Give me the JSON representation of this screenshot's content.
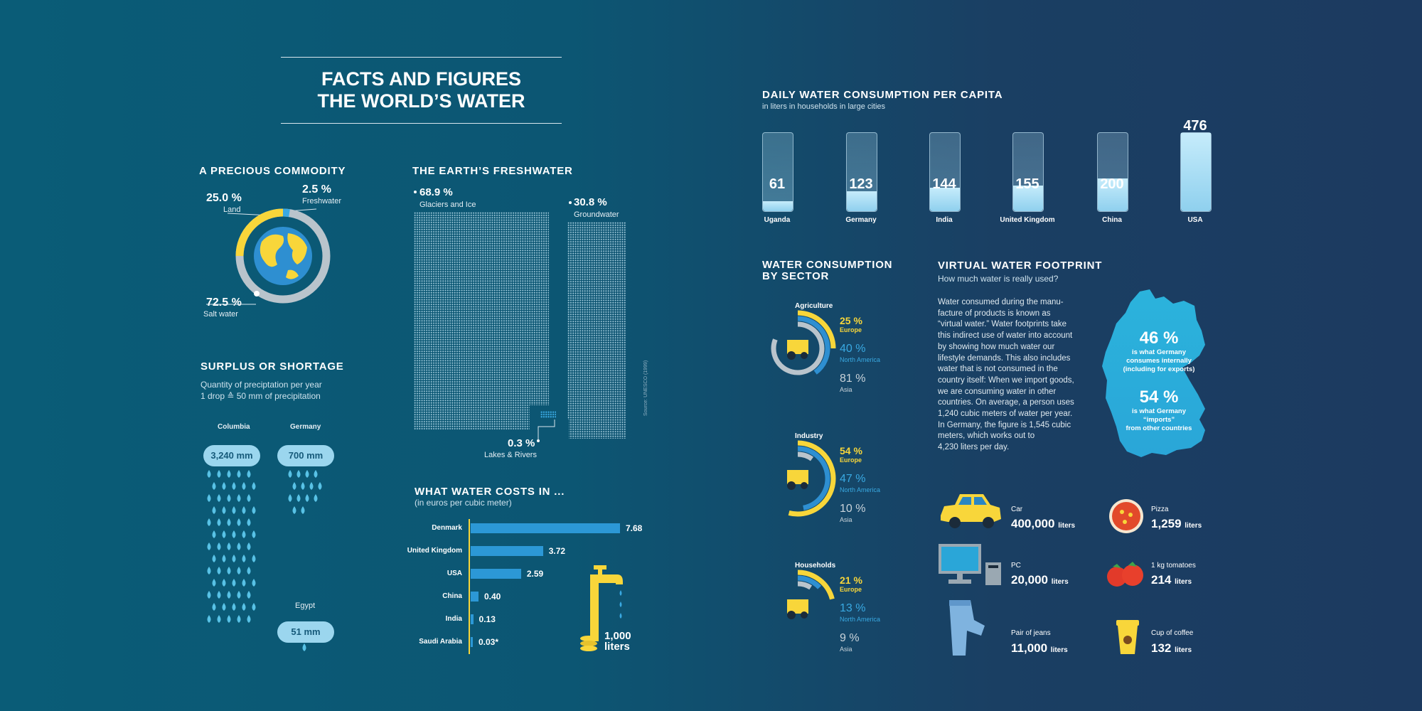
{
  "title": {
    "line1": "FACTS AND FIGURES",
    "line2": "THE WORLD’S WATER"
  },
  "commodity": {
    "heading": "A PRECIOUS COMMODITY",
    "land_pct": "25.0 %",
    "land_label": "Land",
    "fresh_pct": "2.5 %",
    "fresh_label": "Freshwater",
    "salt_pct": "72.5 %",
    "salt_label": "Salt water",
    "colors": {
      "land": "#f8d63a",
      "fresh": "#39a9e2",
      "salt": "#b9c4cc"
    }
  },
  "freshwater": {
    "heading": "THE EARTH’S FRESHWATER",
    "glaciers_pct": "68.9 %",
    "glaciers_label": "Glaciers and Ice",
    "ground_pct": "30.8 %",
    "ground_label": "Groundwater",
    "lakes_pct": "0.3 %",
    "lakes_label": "Lakes & Rivers",
    "source": "Source: UNESCO (1999)"
  },
  "surplus": {
    "heading": "SURPLUS OR SHORTAGE",
    "sub1": "Quantity of preciptation per year",
    "sub2": "1 drop ≙ 50 mm of precipitation",
    "countries": [
      {
        "name": "Columbia",
        "value": "3,240 mm"
      },
      {
        "name": "Germany",
        "value": "700 mm"
      },
      {
        "name": "Egypt",
        "value": "51 mm"
      }
    ]
  },
  "costs": {
    "heading": "WHAT WATER COSTS IN ...",
    "sub": "(in euros per cubic meter)",
    "rows": [
      {
        "country": "Denmark",
        "value": 7.68,
        "label": "7.68"
      },
      {
        "country": "United Kingdom",
        "value": 3.72,
        "label": "3.72"
      },
      {
        "country": "USA",
        "value": 2.59,
        "label": "2.59"
      },
      {
        "country": "China",
        "value": 0.4,
        "label": "0.40"
      },
      {
        "country": "India",
        "value": 0.13,
        "label": "0.13"
      },
      {
        "country": "Saudi Arabia",
        "value": 0.03,
        "label": "0.03*"
      }
    ],
    "tap_value": "1,000",
    "tap_unit": "liters"
  },
  "daily": {
    "heading": "DAILY WATER CONSUMPTION PER CAPITA",
    "sub": "in liters in households in large cities",
    "max": 476,
    "glasses": [
      {
        "country": "Uganda",
        "value": 61,
        "label": "61"
      },
      {
        "country": "Germany",
        "value": 123,
        "label": "123"
      },
      {
        "country": "India",
        "value": 144,
        "label": "144"
      },
      {
        "country": "United Kingdom",
        "value": 155,
        "label": "155"
      },
      {
        "country": "China",
        "value": 200,
        "label": "200"
      },
      {
        "country": "USA",
        "value": 476,
        "label": "476"
      }
    ]
  },
  "sector": {
    "heading1": "WATER CONSUMPTION",
    "heading2": "BY SECTOR",
    "groups": [
      {
        "name": "Agriculture",
        "europe": "25 %",
        "na": "40 %",
        "asia": "81 %",
        "europe_v": 25,
        "na_v": 40,
        "asia_v": 81
      },
      {
        "name": "Industry",
        "europe": "54 %",
        "na": "47 %",
        "asia": "10 %",
        "europe_v": 54,
        "na_v": 47,
        "asia_v": 10
      },
      {
        "name": "Households",
        "europe": "21 %",
        "na": "13 %",
        "asia": "9 %",
        "europe_v": 21,
        "na_v": 13,
        "asia_v": 9
      }
    ],
    "europe_label": "Europe",
    "na_label": "North America",
    "asia_label": "Asia"
  },
  "footprint": {
    "heading": "VIRTUAL WATER FOOTPRINT",
    "sub": "How much water is really used?",
    "body": [
      "Water consumed during the manu-",
      "facture of products is known as",
      "“virtual water.” Water footprints take",
      "this indirect use of water into account",
      "by showing how much water our",
      "lifestyle demands. This also includes",
      "water that is not consumed in the",
      "country itself: When we import goods,",
      "we are consuming water in other",
      "countries. On average, a person uses",
      "1,240 cubic meters of water per year.",
      "In Germany, the figure is 1,545 cubic",
      "meters, which works out to",
      "4,230 liters per day."
    ],
    "internal_pct": "46 %",
    "internal_l1": "is what Germany",
    "internal_l2": "consumes internally",
    "internal_l3": "(including for exports)",
    "import_pct": "54 %",
    "import_l1": "is what Germany",
    "import_l2": "“imports”",
    "import_l3": "from other countries",
    "items": [
      {
        "name": "Car",
        "value": "400,000",
        "unit": "liters"
      },
      {
        "name": "Pizza",
        "value": "1,259",
        "unit": "liters"
      },
      {
        "name": "PC",
        "value": "20,000",
        "unit": "liters"
      },
      {
        "name": "1 kg tomatoes",
        "value": "214",
        "unit": "liters"
      },
      {
        "name": "Pair of jeans",
        "value": "11,000",
        "unit": "liters"
      },
      {
        "name": "Cup of coffee",
        "value": "132",
        "unit": "liters"
      }
    ]
  }
}
